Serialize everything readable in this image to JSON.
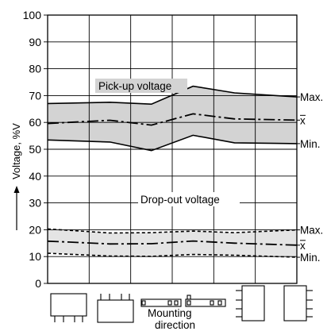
{
  "chart_data": {
    "type": "line",
    "ylabel": "Voltage, %V",
    "ylim": [
      0,
      100
    ],
    "yticks": [
      0,
      10,
      20,
      30,
      40,
      50,
      60,
      70,
      80,
      90,
      100
    ],
    "xlabel": "Mounting direction",
    "x_positions": 6,
    "grid": true,
    "annotations": [
      "Pick-up voltage",
      "Drop-out voltage"
    ],
    "bands": [
      {
        "name": "Pick-up voltage",
        "fill": "#d3d3d3",
        "max": [
          67.2,
          67.5,
          66.8,
          73.5,
          71.0,
          70.0
        ],
        "mean": [
          60.0,
          60.8,
          59.0,
          63.2,
          61.3,
          61.0
        ],
        "min": [
          53.2,
          52.7,
          49.5,
          55.2,
          52.4,
          52.2
        ]
      },
      {
        "name": "Drop-out voltage",
        "fill": "#e4e4e4",
        "max": [
          19.8,
          18.8,
          18.9,
          19.5,
          18.9,
          19.6
        ],
        "mean": [
          15.4,
          14.7,
          14.8,
          15.8,
          15.0,
          14.5
        ],
        "min": [
          10.9,
          10.2,
          10.1,
          10.8,
          10.5,
          10.0
        ]
      }
    ],
    "series_labels": {
      "max": "Max.",
      "mean": "x",
      "min": "Min."
    }
  },
  "x_axis": {
    "line1": "Mounting",
    "line2": "direction"
  },
  "colors": {
    "pickup_band": "#d3d3d3",
    "dropout_band": "#e4e4e4",
    "line": "#000000"
  }
}
